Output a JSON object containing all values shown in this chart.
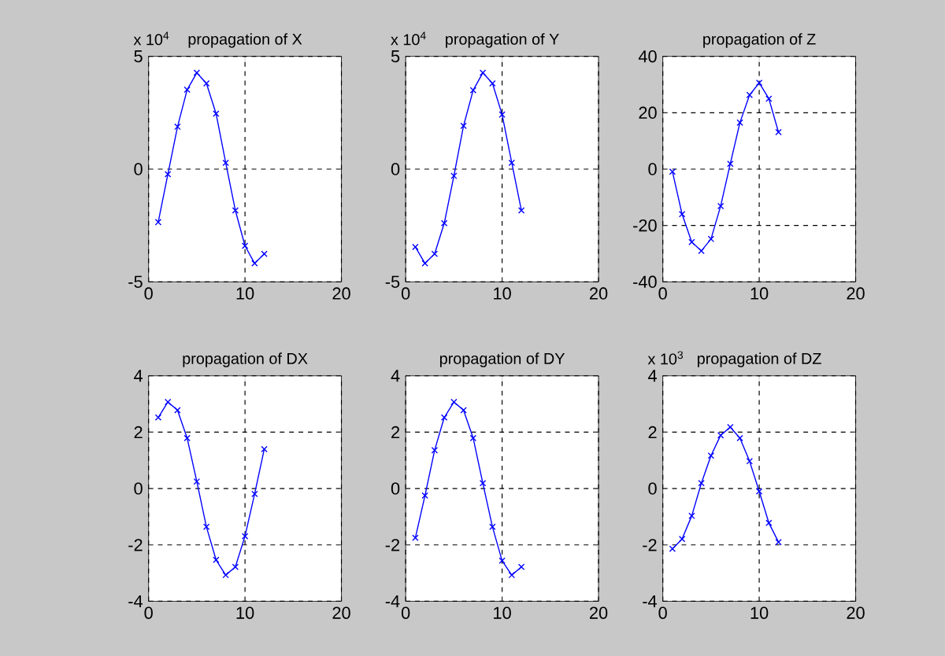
{
  "chart_data": [
    {
      "type": "line",
      "title": "propagation of X",
      "annotations": [
        "x 10$^{4}$"
      ],
      "x": [
        1,
        2,
        3,
        4,
        5,
        6,
        7,
        8,
        9,
        10,
        11,
        12
      ],
      "color": "#0000ff",
      "marker": "cross",
      "line_style": "solid",
      "grid": true,
      "values": [
        -2.35,
        -0.23,
        1.88,
        3.52,
        4.27,
        3.8,
        2.46,
        0.28,
        -1.83,
        -3.4,
        -4.18,
        -3.76
      ],
      "xlim": [
        0,
        20
      ],
      "xticks": [
        0,
        10,
        20
      ],
      "ylim": [
        -5,
        5
      ],
      "yticks": [
        -5,
        0,
        5
      ]
    },
    {
      "type": "line",
      "title": "propagation of Y",
      "annotations": [
        "x 10$^{4}$"
      ],
      "x": [
        1,
        2,
        3,
        4,
        5,
        6,
        7,
        8,
        9,
        10,
        11,
        12
      ],
      "color": "#0000ff",
      "marker": "cross",
      "line_style": "solid",
      "grid": true,
      "values": [
        -3.45,
        -4.18,
        -3.76,
        -2.4,
        -0.3,
        1.92,
        3.5,
        4.27,
        3.8,
        2.42,
        0.28,
        -1.83
      ],
      "xlim": [
        0,
        20
      ],
      "xticks": [
        0,
        10,
        20
      ],
      "ylim": [
        -5,
        5
      ],
      "yticks": [
        -5,
        0,
        5
      ]
    },
    {
      "type": "line",
      "title": "propagation of Z",
      "x": [
        1,
        2,
        3,
        4,
        5,
        6,
        7,
        8,
        9,
        10,
        11,
        12
      ],
      "color": "#0000ff",
      "marker": "cross",
      "line_style": "solid",
      "grid": true,
      "values": [
        -0.9,
        -16,
        -25.9,
        -29,
        -24.8,
        -13.1,
        1.9,
        16.5,
        26.3,
        30.6,
        25,
        13.1
      ],
      "xlim": [
        0,
        20
      ],
      "xticks": [
        0,
        10,
        20
      ],
      "ylim": [
        -40,
        40
      ],
      "yticks": [
        -40,
        -20,
        0,
        20,
        40
      ]
    },
    {
      "type": "line",
      "title": "propagation of DX",
      "x": [
        1,
        2,
        3,
        4,
        5,
        6,
        7,
        8,
        9,
        10,
        11,
        12
      ],
      "color": "#0000ff",
      "marker": "cross",
      "line_style": "solid",
      "grid": true,
      "values": [
        2.52,
        3.07,
        2.78,
        1.79,
        0.25,
        -1.36,
        -2.53,
        -3.07,
        -2.78,
        -1.69,
        -0.19,
        1.4
      ],
      "xlim": [
        0,
        20
      ],
      "xticks": [
        0,
        10,
        20
      ],
      "ylim": [
        -4,
        4
      ],
      "yticks": [
        -4,
        -2,
        0,
        2,
        4
      ]
    },
    {
      "type": "line",
      "title": "propagation of DY",
      "x": [
        1,
        2,
        3,
        4,
        5,
        6,
        7,
        8,
        9,
        10,
        11,
        12
      ],
      "color": "#0000ff",
      "marker": "cross",
      "line_style": "solid",
      "grid": true,
      "values": [
        -1.75,
        -0.25,
        1.36,
        2.52,
        3.07,
        2.78,
        1.79,
        0.19,
        -1.36,
        -2.56,
        -3.07,
        -2.78
      ],
      "xlim": [
        0,
        20
      ],
      "xticks": [
        0,
        10,
        20
      ],
      "ylim": [
        -4,
        4
      ],
      "yticks": [
        -4,
        -2,
        0,
        2,
        4
      ]
    },
    {
      "type": "line",
      "title": "propagation of DZ",
      "annotations": [
        "x 10$^{3}$"
      ],
      "x": [
        1,
        2,
        3,
        4,
        5,
        6,
        7,
        8,
        9,
        10,
        11,
        12
      ],
      "color": "#0000ff",
      "marker": "cross",
      "line_style": "solid",
      "grid": true,
      "values": [
        -2.14,
        -1.79,
        -0.97,
        0.19,
        1.17,
        1.89,
        2.18,
        1.79,
        0.97,
        -0.1,
        -1.22,
        -1.9
      ],
      "xlim": [
        0,
        20
      ],
      "xticks": [
        0,
        10,
        20
      ],
      "ylim": [
        -4,
        4
      ],
      "yticks": [
        -4,
        -2,
        0,
        2,
        4
      ]
    }
  ]
}
